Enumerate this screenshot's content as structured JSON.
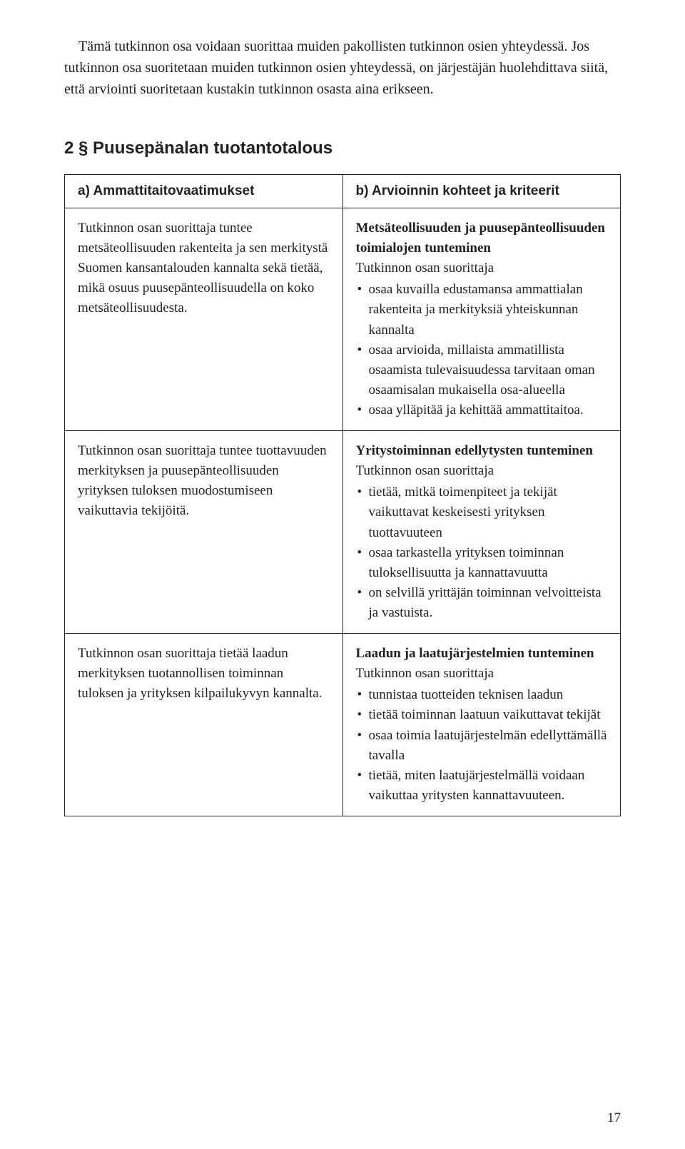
{
  "intro_paragraph": "Tämä tutkinnon osa voidaan suorittaa muiden pakollisten tutkinnon osien yhteydessä. Jos tutkinnon osa suoritetaan muiden tutkinnon osien yhteydessä, on järjestäjän huolehdittava siitä, että arviointi suoritetaan kustakin tutkinnon osasta aina erikseen.",
  "section_heading": "2 § Puusepänalan tuotantotalous",
  "table": {
    "header_left": "a) Ammattitaitovaatimukset",
    "header_right": "b) Arvioinnin kohteet ja kriteerit",
    "rows": [
      {
        "left": "Tutkinnon osan suorittaja tuntee metsäteollisuuden rakenteita ja sen merkitystä Suomen kansantalouden kannalta sekä tietää, mikä osuus puusepänteollisuudella on koko metsäteollisuudesta.",
        "right_heading": "Metsäteollisuuden ja puusepänteollisuuden toimialojen tunteminen",
        "right_intro": "Tutkinnon osan suorittaja",
        "right_bullets": [
          "osaa kuvailla edustamansa ammattialan rakenteita ja merkityksiä yhteiskunnan kannalta",
          "osaa arvioida, millaista ammatillista osaamista tulevaisuudessa tarvitaan oman osaamisalan mukaisella osa-alueella",
          "osaa ylläpitää ja kehittää ammattitaitoa."
        ]
      },
      {
        "left": "Tutkinnon osan suorittaja tuntee tuottavuuden merkityksen ja puusepänteollisuuden yrityksen tuloksen muodostumiseen vaikuttavia tekijöitä.",
        "right_heading": "Yritystoiminnan edellytysten tunteminen",
        "right_intro": "Tutkinnon osan suorittaja",
        "right_bullets": [
          "tietää, mitkä toimenpiteet ja tekijät vaikuttavat keskeisesti yrityksen tuottavuuteen",
          "osaa tarkastella yrityksen toiminnan tuloksellisuutta ja kannattavuutta",
          "on selvillä yrittäjän toiminnan velvoitteista ja vastuista."
        ]
      },
      {
        "left": "Tutkinnon osan suorittaja tietää laadun merkityksen tuotannollisen toiminnan tuloksen ja yrityksen kilpailukyvyn kannalta.",
        "right_heading": "Laadun ja laatujärjestelmien tunteminen",
        "right_intro": "Tutkinnon osan suorittaja",
        "right_bullets": [
          "tunnistaa tuotteiden teknisen laadun",
          "tietää toiminnan laatuun vaikuttavat tekijät",
          "osaa toimia laatujärjestelmän edellyttämällä tavalla",
          "tietää, miten laatujärjestelmällä voidaan vaikuttaa yritysten kannattavuuteen."
        ]
      }
    ]
  },
  "page_number": "17"
}
